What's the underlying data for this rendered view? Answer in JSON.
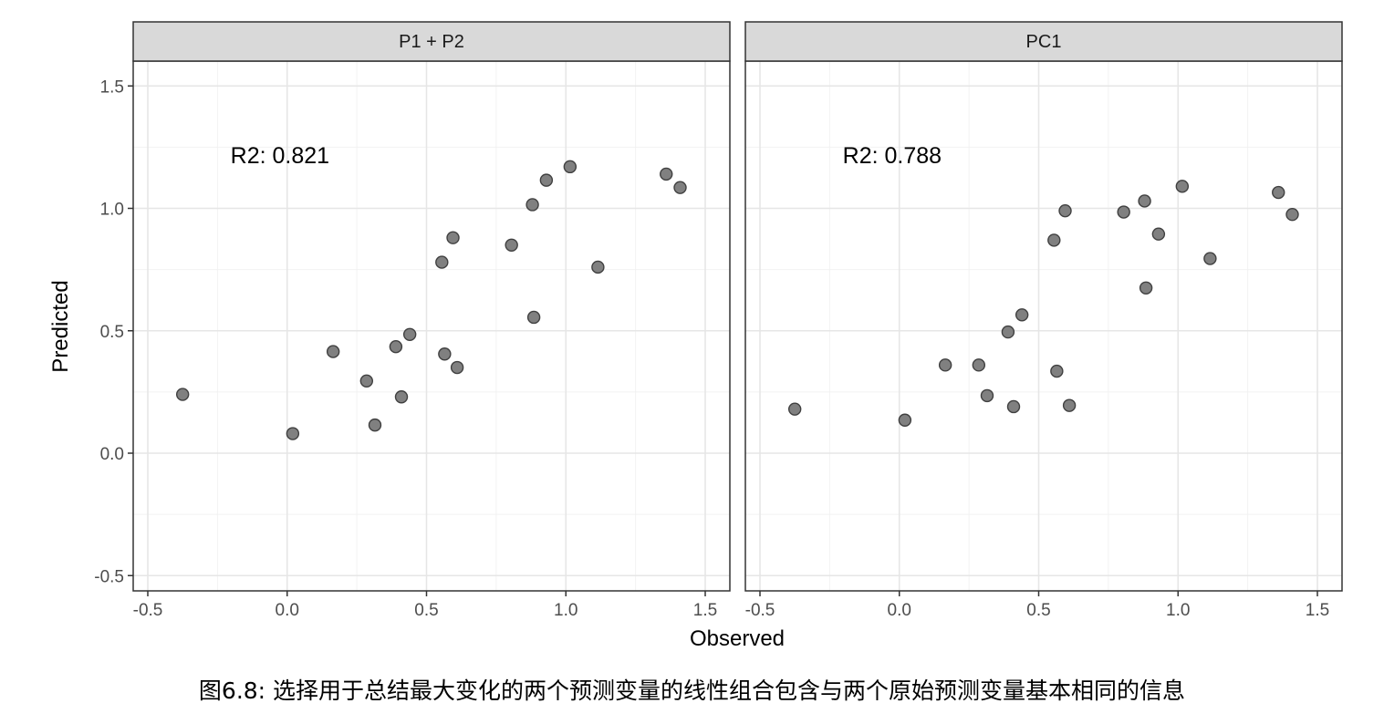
{
  "caption": "图6.8: 选择用于总结最大变化的两个预测变量的线性组合包含与两个原始预测变量基本相同的信息",
  "chart_data": {
    "type": "scatter",
    "xlabel": "Observed",
    "ylabel": "Predicted",
    "xlim": [
      -0.55,
      1.6
    ],
    "ylim": [
      -0.55,
      1.6
    ],
    "x_ticks": [
      -0.5,
      0.0,
      0.5,
      1.0,
      1.5
    ],
    "y_ticks": [
      -0.5,
      0.0,
      0.5,
      1.0,
      1.5
    ],
    "x_tick_labels": [
      "-0.5",
      "0.0",
      "0.5",
      "1.0",
      "1.5"
    ],
    "y_tick_labels": [
      "-0.5",
      "0.0",
      "0.5",
      "1.0",
      "1.5"
    ],
    "grid": true,
    "point_color": "#808080",
    "point_stroke": "#404040",
    "panels": [
      {
        "strip": "P1 + P2",
        "annotation": "R2: 0.821",
        "annotation_at": [
          -0.2,
          1.2
        ],
        "points": [
          {
            "x": -0.375,
            "y": 0.24
          },
          {
            "x": 0.02,
            "y": 0.08
          },
          {
            "x": 0.165,
            "y": 0.415
          },
          {
            "x": 0.285,
            "y": 0.295
          },
          {
            "x": 0.315,
            "y": 0.115
          },
          {
            "x": 0.39,
            "y": 0.435
          },
          {
            "x": 0.41,
            "y": 0.23
          },
          {
            "x": 0.44,
            "y": 0.485
          },
          {
            "x": 0.555,
            "y": 0.78
          },
          {
            "x": 0.565,
            "y": 0.405
          },
          {
            "x": 0.595,
            "y": 0.88
          },
          {
            "x": 0.61,
            "y": 0.35
          },
          {
            "x": 0.805,
            "y": 0.85
          },
          {
            "x": 0.88,
            "y": 1.015
          },
          {
            "x": 0.885,
            "y": 0.555
          },
          {
            "x": 0.93,
            "y": 1.115
          },
          {
            "x": 1.015,
            "y": 1.17
          },
          {
            "x": 1.115,
            "y": 0.76
          },
          {
            "x": 1.36,
            "y": 1.14
          },
          {
            "x": 1.41,
            "y": 1.085
          }
        ]
      },
      {
        "strip": "PC1",
        "annotation": "R2: 0.788",
        "annotation_at": [
          -0.2,
          1.2
        ],
        "points": [
          {
            "x": -0.375,
            "y": 0.18
          },
          {
            "x": 0.02,
            "y": 0.135
          },
          {
            "x": 0.165,
            "y": 0.36
          },
          {
            "x": 0.285,
            "y": 0.36
          },
          {
            "x": 0.315,
            "y": 0.235
          },
          {
            "x": 0.39,
            "y": 0.495
          },
          {
            "x": 0.41,
            "y": 0.19
          },
          {
            "x": 0.44,
            "y": 0.565
          },
          {
            "x": 0.555,
            "y": 0.87
          },
          {
            "x": 0.565,
            "y": 0.335
          },
          {
            "x": 0.595,
            "y": 0.99
          },
          {
            "x": 0.61,
            "y": 0.195
          },
          {
            "x": 0.805,
            "y": 0.985
          },
          {
            "x": 0.88,
            "y": 1.03
          },
          {
            "x": 0.885,
            "y": 0.675
          },
          {
            "x": 0.93,
            "y": 0.895
          },
          {
            "x": 1.015,
            "y": 1.09
          },
          {
            "x": 1.115,
            "y": 0.795
          },
          {
            "x": 1.36,
            "y": 1.065
          },
          {
            "x": 1.41,
            "y": 0.975
          }
        ]
      }
    ]
  }
}
